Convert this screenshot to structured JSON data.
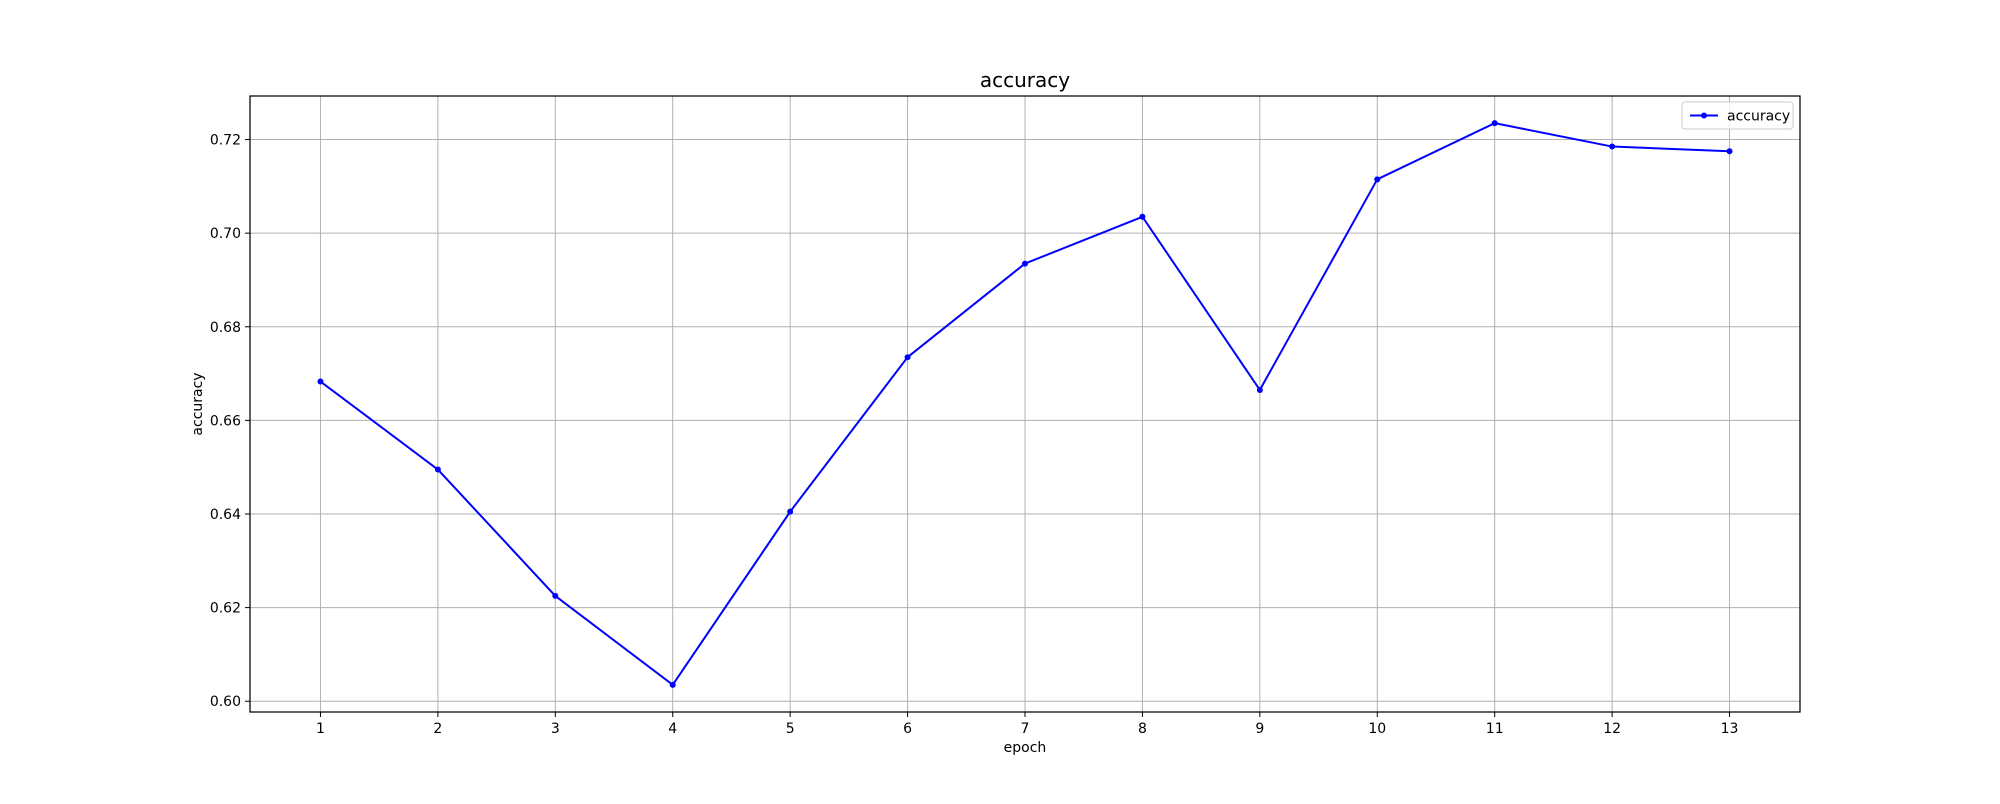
{
  "chart_data": {
    "type": "line",
    "title": "accuracy",
    "xlabel": "epoch",
    "ylabel": "accuracy",
    "x": [
      1,
      2,
      3,
      4,
      5,
      6,
      7,
      8,
      9,
      10,
      11,
      12,
      13
    ],
    "xlim": [
      0.4,
      13.6
    ],
    "ylim": [
      0.5977,
      0.7293
    ],
    "xticks": [
      1,
      2,
      3,
      4,
      5,
      6,
      7,
      8,
      9,
      10,
      11,
      12,
      13
    ],
    "yticks": [
      0.6,
      0.62,
      0.64,
      0.66,
      0.68,
      0.7,
      0.72
    ],
    "ytick_labels": [
      "0.60",
      "0.62",
      "0.64",
      "0.66",
      "0.68",
      "0.70",
      "0.72"
    ],
    "grid": true,
    "legend_position": "top-right",
    "series": [
      {
        "name": "accuracy",
        "color": "#0000ff",
        "marker": "dot",
        "values": [
          0.6683,
          0.6495,
          0.6225,
          0.6035,
          0.6405,
          0.6735,
          0.6935,
          0.7035,
          0.6665,
          0.7115,
          0.7235,
          0.7185,
          0.7175
        ]
      }
    ]
  }
}
